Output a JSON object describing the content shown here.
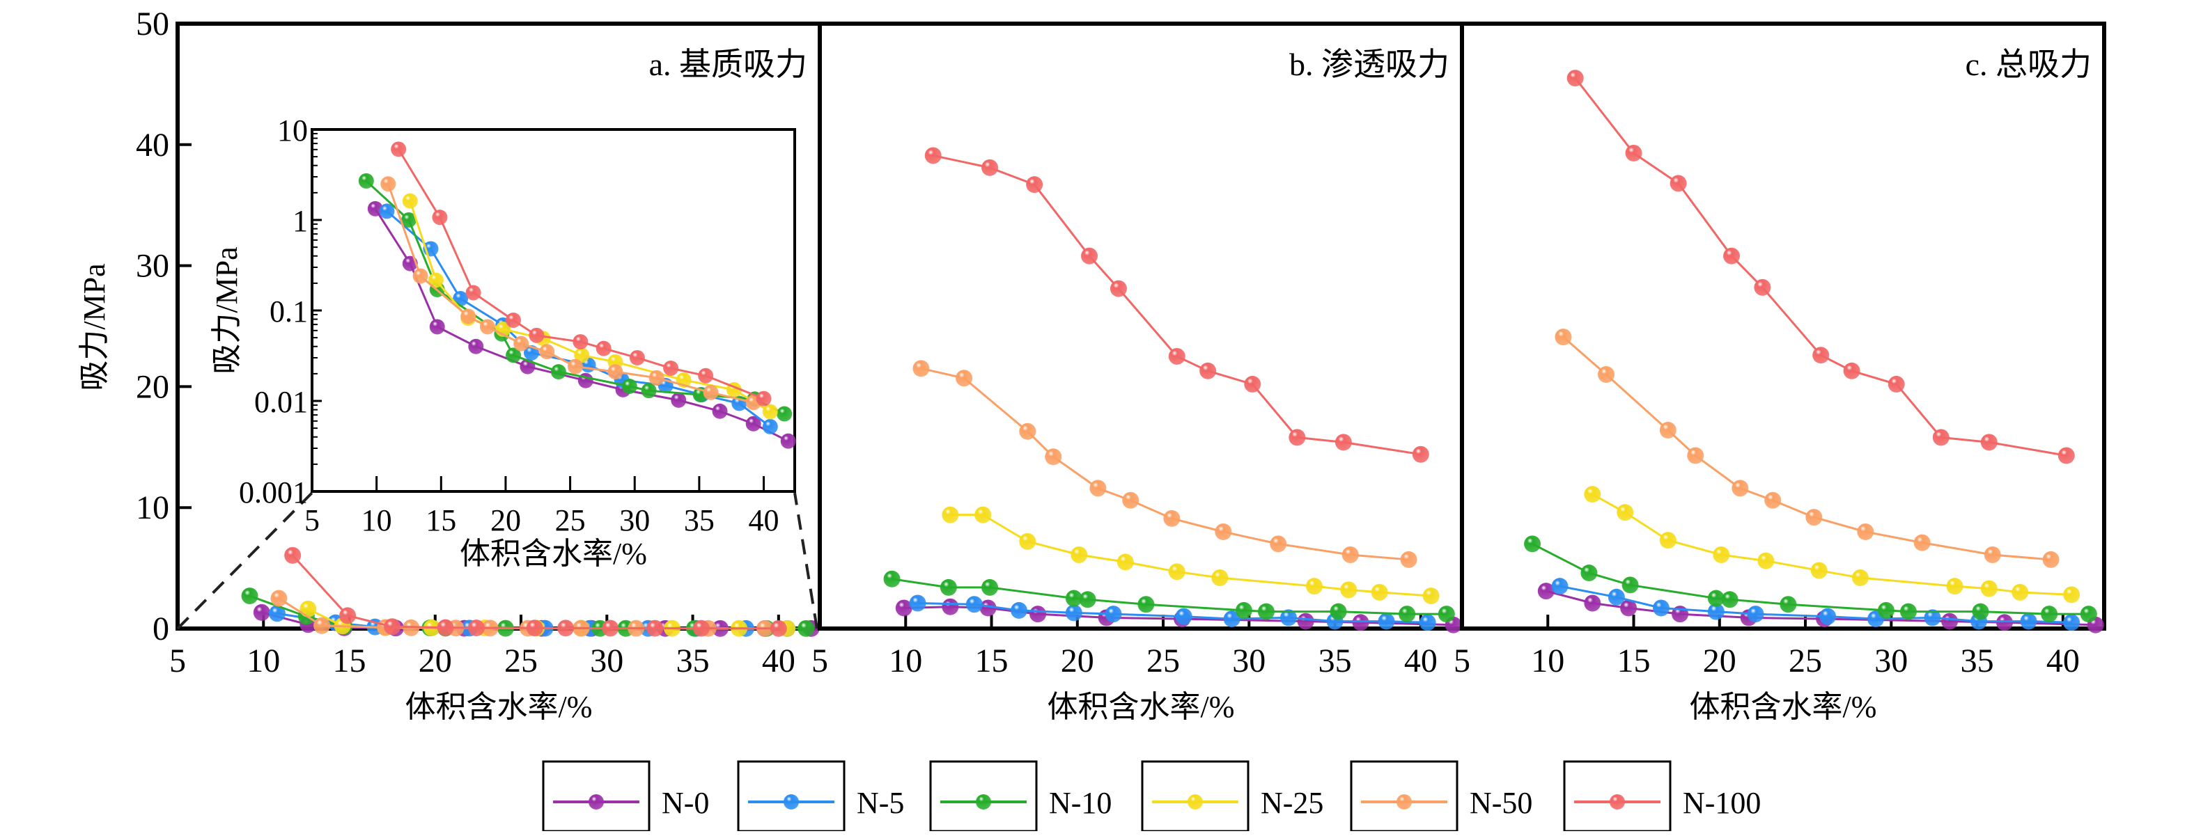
{
  "colors": {
    "N-0": "#9b2fa8",
    "N-5": "#2b8df2",
    "N-10": "#26ad2b",
    "N-25": "#f6dc1c",
    "N-50": "#fba064",
    "N-100": "#f26666"
  },
  "legend": [
    "N-0",
    "N-5",
    "N-10",
    "N-25",
    "N-50",
    "N-100"
  ],
  "chart_data": [
    {
      "id": "a",
      "type": "line",
      "title": "a. 基质吸力",
      "xlabel": "体积含水率/%",
      "ylabel": "吸力/MPa",
      "xlim": [
        5,
        42.4
      ],
      "ylim": [
        0,
        50
      ],
      "xticks": [
        "5",
        "10",
        "15",
        "20",
        "25",
        "30",
        "35",
        "40"
      ],
      "yticks": [
        "0",
        "10",
        "20",
        "30",
        "40",
        "50"
      ],
      "inset": {
        "type": "line",
        "yscale": "log",
        "xlabel": "体积含水率/%",
        "ylabel": "吸力/MPa",
        "xlim": [
          5,
          42.4
        ],
        "ylim": [
          0.001,
          10
        ],
        "xticks": [
          "5",
          "10",
          "15",
          "20",
          "25",
          "30",
          "35",
          "40"
        ],
        "yticks": [
          "0.001",
          "0.01",
          "0.1",
          "1",
          "10"
        ]
      },
      "series": [
        {
          "name": "N-0",
          "points": [
            [
              9.9,
              1.33
            ],
            [
              12.6,
              0.33
            ],
            [
              14.7,
              0.066
            ],
            [
              17.7,
              0.04
            ],
            [
              21.7,
              0.024
            ],
            [
              26.2,
              0.0168
            ],
            [
              29.1,
              0.0133
            ],
            [
              33.4,
              0.0102
            ],
            [
              36.6,
              0.0077
            ],
            [
              39.2,
              0.0056
            ],
            [
              41.9,
              0.0036
            ]
          ]
        },
        {
          "name": "N-5",
          "points": [
            [
              10.8,
              1.25
            ],
            [
              14.2,
              0.48
            ],
            [
              16.5,
              0.135
            ],
            [
              19.8,
              0.069
            ],
            [
              22.0,
              0.034
            ],
            [
              26.4,
              0.025
            ],
            [
              29.0,
              0.017
            ],
            [
              32.4,
              0.0148
            ],
            [
              35.2,
              0.0117
            ],
            [
              38.1,
              0.0094
            ],
            [
              40.5,
              0.0052
            ]
          ]
        },
        {
          "name": "N-10",
          "points": [
            [
              9.2,
              2.7
            ],
            [
              12.5,
              1.0
            ],
            [
              14.7,
              0.17
            ],
            [
              19.7,
              0.055
            ],
            [
              20.6,
              0.032
            ],
            [
              24.1,
              0.021
            ],
            [
              29.6,
              0.0145
            ],
            [
              31.1,
              0.013
            ],
            [
              35.1,
              0.0117
            ],
            [
              39.3,
              0.0105
            ],
            [
              41.6,
              0.0072
            ]
          ]
        },
        {
          "name": "N-25",
          "points": [
            [
              12.6,
              1.62
            ],
            [
              14.6,
              0.216
            ],
            [
              17.1,
              0.082
            ],
            [
              19.8,
              0.062
            ],
            [
              22.9,
              0.049
            ],
            [
              25.9,
              0.032
            ],
            [
              28.5,
              0.027
            ],
            [
              33.8,
              0.017
            ],
            [
              37.7,
              0.0133
            ],
            [
              40.5,
              0.0076
            ]
          ]
        },
        {
          "name": "N-50",
          "points": [
            [
              10.9,
              2.5
            ],
            [
              13.4,
              0.24
            ],
            [
              17.1,
              0.086
            ],
            [
              18.6,
              0.066
            ],
            [
              21.2,
              0.043
            ],
            [
              23.2,
              0.035
            ],
            [
              25.4,
              0.024
            ],
            [
              28.5,
              0.021
            ],
            [
              31.7,
              0.018
            ],
            [
              35.9,
              0.0124
            ],
            [
              39.2,
              0.0096
            ]
          ]
        },
        {
          "name": "N-100",
          "points": [
            [
              11.7,
              6.05
            ],
            [
              14.9,
              1.07
            ],
            [
              17.5,
              0.157
            ],
            [
              20.6,
              0.078
            ],
            [
              22.4,
              0.053
            ],
            [
              25.8,
              0.045
            ],
            [
              27.6,
              0.038
            ],
            [
              30.2,
              0.03
            ],
            [
              32.8,
              0.023
            ],
            [
              35.5,
              0.019
            ],
            [
              40.0,
              0.0106
            ]
          ]
        }
      ]
    },
    {
      "id": "b",
      "type": "line",
      "title": "b. 渗透吸力",
      "xlabel": "体积含水率/%",
      "xlim": [
        5,
        42.4
      ],
      "ylim": [
        0,
        50
      ],
      "xticks": [
        "5",
        "10",
        "15",
        "20",
        "25",
        "30",
        "35",
        "40"
      ],
      "series": [
        {
          "name": "N-0",
          "points": [
            [
              9.9,
              1.7
            ],
            [
              12.6,
              1.8
            ],
            [
              14.8,
              1.7
            ],
            [
              17.7,
              1.2
            ],
            [
              21.7,
              0.9
            ],
            [
              26.1,
              0.8
            ],
            [
              33.3,
              0.6
            ],
            [
              36.5,
              0.5
            ],
            [
              41.9,
              0.3
            ]
          ]
        },
        {
          "name": "N-5",
          "points": [
            [
              10.7,
              2.1
            ],
            [
              14.0,
              2.0
            ],
            [
              16.6,
              1.5
            ],
            [
              19.8,
              1.3
            ],
            [
              22.1,
              1.2
            ],
            [
              26.2,
              1.0
            ],
            [
              29.0,
              0.8
            ],
            [
              32.3,
              0.9
            ],
            [
              35.0,
              0.6
            ],
            [
              38.0,
              0.6
            ],
            [
              40.4,
              0.5
            ]
          ]
        },
        {
          "name": "N-10",
          "points": [
            [
              9.2,
              4.1
            ],
            [
              12.5,
              3.4
            ],
            [
              14.9,
              3.4
            ],
            [
              19.8,
              2.5
            ],
            [
              20.6,
              2.4
            ],
            [
              24.0,
              2.0
            ],
            [
              29.7,
              1.5
            ],
            [
              31.0,
              1.4
            ],
            [
              35.2,
              1.4
            ],
            [
              39.2,
              1.2
            ],
            [
              41.5,
              1.2
            ]
          ]
        },
        {
          "name": "N-25",
          "points": [
            [
              12.6,
              9.4
            ],
            [
              14.5,
              9.4
            ],
            [
              17.1,
              7.2
            ],
            [
              20.1,
              6.1
            ],
            [
              22.8,
              5.5
            ],
            [
              25.8,
              4.7
            ],
            [
              28.3,
              4.2
            ],
            [
              33.8,
              3.5
            ],
            [
              35.8,
              3.2
            ],
            [
              37.6,
              3.0
            ],
            [
              40.6,
              2.7
            ]
          ]
        },
        {
          "name": "N-50",
          "points": [
            [
              10.9,
              21.5
            ],
            [
              13.4,
              20.7
            ],
            [
              17.1,
              16.3
            ],
            [
              18.6,
              14.2
            ],
            [
              21.2,
              11.6
            ],
            [
              23.1,
              10.6
            ],
            [
              25.5,
              9.1
            ],
            [
              28.5,
              8.0
            ],
            [
              31.7,
              7.0
            ],
            [
              35.9,
              6.1
            ],
            [
              39.3,
              5.7
            ]
          ]
        },
        {
          "name": "N-100",
          "points": [
            [
              11.6,
              39.1
            ],
            [
              14.9,
              38.1
            ],
            [
              17.5,
              36.7
            ],
            [
              20.7,
              30.8
            ],
            [
              22.4,
              28.1
            ],
            [
              25.8,
              22.5
            ],
            [
              27.6,
              21.3
            ],
            [
              30.2,
              20.2
            ],
            [
              32.8,
              15.8
            ],
            [
              35.5,
              15.4
            ],
            [
              40.0,
              14.4
            ]
          ]
        }
      ]
    },
    {
      "id": "c",
      "type": "line",
      "title": "c. 总吸力",
      "xlabel": "体积含水率/%",
      "xlim": [
        5,
        42.4
      ],
      "ylim": [
        0,
        50
      ],
      "xticks": [
        "5",
        "10",
        "15",
        "20",
        "25",
        "30",
        "35",
        "40"
      ],
      "series": [
        {
          "name": "N-0",
          "points": [
            [
              9.9,
              3.1
            ],
            [
              12.6,
              2.1
            ],
            [
              14.7,
              1.7
            ],
            [
              17.7,
              1.2
            ],
            [
              21.7,
              0.9
            ],
            [
              26.1,
              0.8
            ],
            [
              33.4,
              0.6
            ],
            [
              36.6,
              0.5
            ],
            [
              41.9,
              0.3
            ]
          ]
        },
        {
          "name": "N-5",
          "points": [
            [
              10.7,
              3.5
            ],
            [
              14.0,
              2.6
            ],
            [
              16.6,
              1.7
            ],
            [
              19.8,
              1.4
            ],
            [
              22.1,
              1.2
            ],
            [
              26.3,
              1.0
            ],
            [
              29.1,
              0.8
            ],
            [
              32.4,
              0.9
            ],
            [
              35.1,
              0.6
            ],
            [
              38.0,
              0.6
            ],
            [
              40.5,
              0.5
            ]
          ]
        },
        {
          "name": "N-10",
          "points": [
            [
              9.1,
              7.0
            ],
            [
              12.4,
              4.6
            ],
            [
              14.8,
              3.6
            ],
            [
              19.8,
              2.5
            ],
            [
              20.6,
              2.4
            ],
            [
              24.0,
              2.0
            ],
            [
              29.7,
              1.5
            ],
            [
              31.0,
              1.4
            ],
            [
              35.2,
              1.4
            ],
            [
              39.2,
              1.2
            ],
            [
              41.5,
              1.2
            ]
          ]
        },
        {
          "name": "N-25",
          "points": [
            [
              12.6,
              11.1
            ],
            [
              14.5,
              9.6
            ],
            [
              17.0,
              7.3
            ],
            [
              20.1,
              6.1
            ],
            [
              22.7,
              5.6
            ],
            [
              25.8,
              4.8
            ],
            [
              28.2,
              4.2
            ],
            [
              33.7,
              3.5
            ],
            [
              35.7,
              3.3
            ],
            [
              37.5,
              3.0
            ],
            [
              40.5,
              2.8
            ]
          ]
        },
        {
          "name": "N-50",
          "points": [
            [
              10.9,
              24.1
            ],
            [
              13.4,
              21.0
            ],
            [
              17.0,
              16.4
            ],
            [
              18.6,
              14.3
            ],
            [
              21.2,
              11.6
            ],
            [
              23.1,
              10.6
            ],
            [
              25.5,
              9.2
            ],
            [
              28.5,
              8.0
            ],
            [
              31.8,
              7.1
            ],
            [
              35.9,
              6.1
            ],
            [
              39.3,
              5.7
            ]
          ]
        },
        {
          "name": "N-100",
          "points": [
            [
              11.6,
              45.5
            ],
            [
              15.0,
              39.3
            ],
            [
              17.6,
              36.8
            ],
            [
              20.7,
              30.8
            ],
            [
              22.5,
              28.2
            ],
            [
              25.9,
              22.6
            ],
            [
              27.7,
              21.3
            ],
            [
              30.3,
              20.2
            ],
            [
              32.9,
              15.8
            ],
            [
              35.7,
              15.4
            ],
            [
              40.2,
              14.3
            ]
          ]
        }
      ]
    }
  ]
}
